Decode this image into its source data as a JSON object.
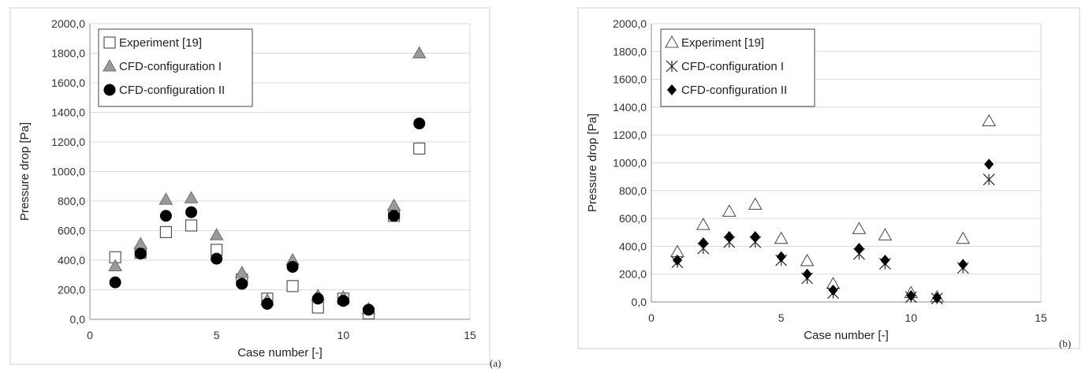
{
  "chart_data": [
    {
      "type": "scatter",
      "panel_label": "(a)",
      "xlabel": "Case number [-]",
      "ylabel": "Pressure drop [Pa]",
      "xlim": [
        0,
        15
      ],
      "ylim": [
        0,
        2000
      ],
      "xticks": [
        "0",
        "5",
        "10",
        "15"
      ],
      "yticks": [
        "0,0",
        "200,0",
        "400,0",
        "600,0",
        "800,0",
        "1000,0",
        "1200,0",
        "1400,0",
        "1600,0",
        "1800,0",
        "2000,0"
      ],
      "grid": "horizontal",
      "legend_position": "top-left",
      "series": [
        {
          "name": "Experiment [19]",
          "marker": "square-open",
          "color": "#555555",
          "x": [
            1,
            2,
            3,
            4,
            5,
            6,
            7,
            8,
            9,
            10,
            11,
            12,
            13
          ],
          "y": [
            420,
            450,
            590,
            635,
            470,
            270,
            140,
            225,
            80,
            140,
            40,
            700,
            1155
          ]
        },
        {
          "name": "CFD-configuration I",
          "marker": "triangle-gray",
          "color": "#999999",
          "x": [
            1,
            2,
            3,
            4,
            5,
            6,
            7,
            8,
            9,
            10,
            11,
            12,
            13
          ],
          "y": [
            360,
            510,
            810,
            820,
            570,
            315,
            130,
            400,
            160,
            150,
            70,
            770,
            1800
          ]
        },
        {
          "name": "CFD-configuration II",
          "marker": "circle-filled",
          "color": "#000000",
          "x": [
            1,
            2,
            3,
            4,
            5,
            6,
            7,
            8,
            9,
            10,
            11,
            12,
            13
          ],
          "y": [
            250,
            445,
            700,
            725,
            410,
            240,
            105,
            355,
            140,
            125,
            65,
            700,
            1325
          ]
        }
      ]
    },
    {
      "type": "scatter",
      "panel_label": "(b)",
      "xlabel": "Case number [-]",
      "ylabel": "Pressure drop [Pa]",
      "xlim": [
        0,
        15
      ],
      "ylim": [
        0,
        2000
      ],
      "xticks": [
        "0",
        "5",
        "10",
        "15"
      ],
      "yticks": [
        "0,0",
        "200,0",
        "400,0",
        "600,0",
        "800,0",
        "1000,0",
        "1200,0",
        "1400,0",
        "1600,0",
        "1800,0",
        "2000,0"
      ],
      "grid": "horizontal",
      "legend_position": "top-left",
      "series": [
        {
          "name": "Experiment [19]",
          "marker": "triangle-open",
          "color": "#555555",
          "x": [
            1,
            2,
            3,
            4,
            5,
            6,
            7,
            8,
            9,
            10,
            11,
            12,
            13
          ],
          "y": [
            360,
            555,
            650,
            700,
            455,
            295,
            130,
            525,
            480,
            65,
            35,
            455,
            1300
          ]
        },
        {
          "name": "CFD-configuration I",
          "marker": "asterisk",
          "color": "#222222",
          "x": [
            1,
            2,
            3,
            4,
            5,
            6,
            7,
            8,
            9,
            10,
            11,
            12,
            13
          ],
          "y": [
            285,
            385,
            430,
            430,
            300,
            170,
            65,
            345,
            275,
            35,
            25,
            245,
            880
          ]
        },
        {
          "name": "CFD-configuration II",
          "marker": "diamond-filled",
          "color": "#000000",
          "x": [
            1,
            2,
            3,
            4,
            5,
            6,
            7,
            8,
            9,
            10,
            11,
            12,
            13
          ],
          "y": [
            300,
            425,
            470,
            470,
            325,
            200,
            85,
            385,
            300,
            45,
            30,
            270,
            990
          ]
        }
      ]
    }
  ]
}
